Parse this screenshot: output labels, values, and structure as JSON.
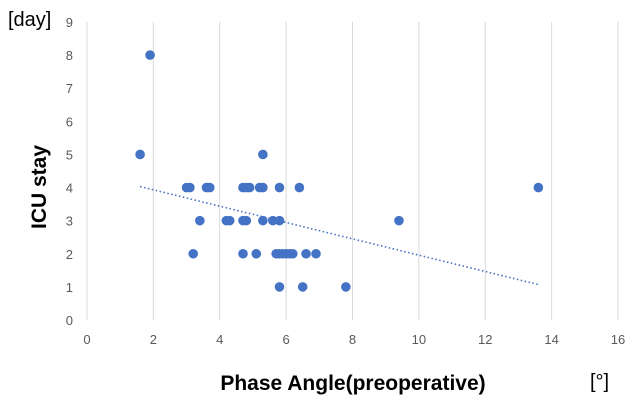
{
  "chart_data": {
    "type": "scatter",
    "title": "",
    "xlabel": "Phase Angle(preoperative)",
    "ylabel": "ICU stay",
    "x_unit": "[°]",
    "y_unit": "[day]",
    "xlim": [
      0,
      16
    ],
    "ylim": [
      0,
      9
    ],
    "x_ticks": [
      "0",
      "2",
      "4",
      "6",
      "8",
      "10",
      "12",
      "14",
      "16"
    ],
    "y_ticks": [
      "0",
      "1",
      "2",
      "3",
      "4",
      "5",
      "6",
      "7",
      "8",
      "9"
    ],
    "grid": "vertical",
    "marker_color": "#4472C4",
    "trendline": {
      "type": "linear",
      "style": "dotted",
      "color": "#4472C4",
      "x_range": [
        1.6,
        13.6
      ],
      "y_values": [
        4.03,
        1.07
      ]
    },
    "points": [
      {
        "x": 1.9,
        "y": 8
      },
      {
        "x": 1.6,
        "y": 5
      },
      {
        "x": 5.3,
        "y": 5
      },
      {
        "x": 3.0,
        "y": 4
      },
      {
        "x": 3.1,
        "y": 4
      },
      {
        "x": 3.6,
        "y": 4
      },
      {
        "x": 3.7,
        "y": 4
      },
      {
        "x": 4.7,
        "y": 4
      },
      {
        "x": 4.8,
        "y": 4
      },
      {
        "x": 4.9,
        "y": 4
      },
      {
        "x": 5.2,
        "y": 4
      },
      {
        "x": 5.3,
        "y": 4
      },
      {
        "x": 5.8,
        "y": 4
      },
      {
        "x": 6.4,
        "y": 4
      },
      {
        "x": 13.6,
        "y": 4
      },
      {
        "x": 3.4,
        "y": 3
      },
      {
        "x": 4.2,
        "y": 3
      },
      {
        "x": 4.3,
        "y": 3
      },
      {
        "x": 4.7,
        "y": 3
      },
      {
        "x": 4.8,
        "y": 3
      },
      {
        "x": 5.3,
        "y": 3
      },
      {
        "x": 5.6,
        "y": 3
      },
      {
        "x": 5.8,
        "y": 3
      },
      {
        "x": 9.4,
        "y": 3
      },
      {
        "x": 3.2,
        "y": 2
      },
      {
        "x": 4.7,
        "y": 2
      },
      {
        "x": 5.1,
        "y": 2
      },
      {
        "x": 5.7,
        "y": 2
      },
      {
        "x": 5.8,
        "y": 2
      },
      {
        "x": 5.9,
        "y": 2
      },
      {
        "x": 6.0,
        "y": 2
      },
      {
        "x": 6.1,
        "y": 2
      },
      {
        "x": 6.2,
        "y": 2
      },
      {
        "x": 6.6,
        "y": 2
      },
      {
        "x": 6.9,
        "y": 2
      },
      {
        "x": 5.8,
        "y": 1
      },
      {
        "x": 6.5,
        "y": 1
      },
      {
        "x": 7.8,
        "y": 1
      }
    ]
  }
}
